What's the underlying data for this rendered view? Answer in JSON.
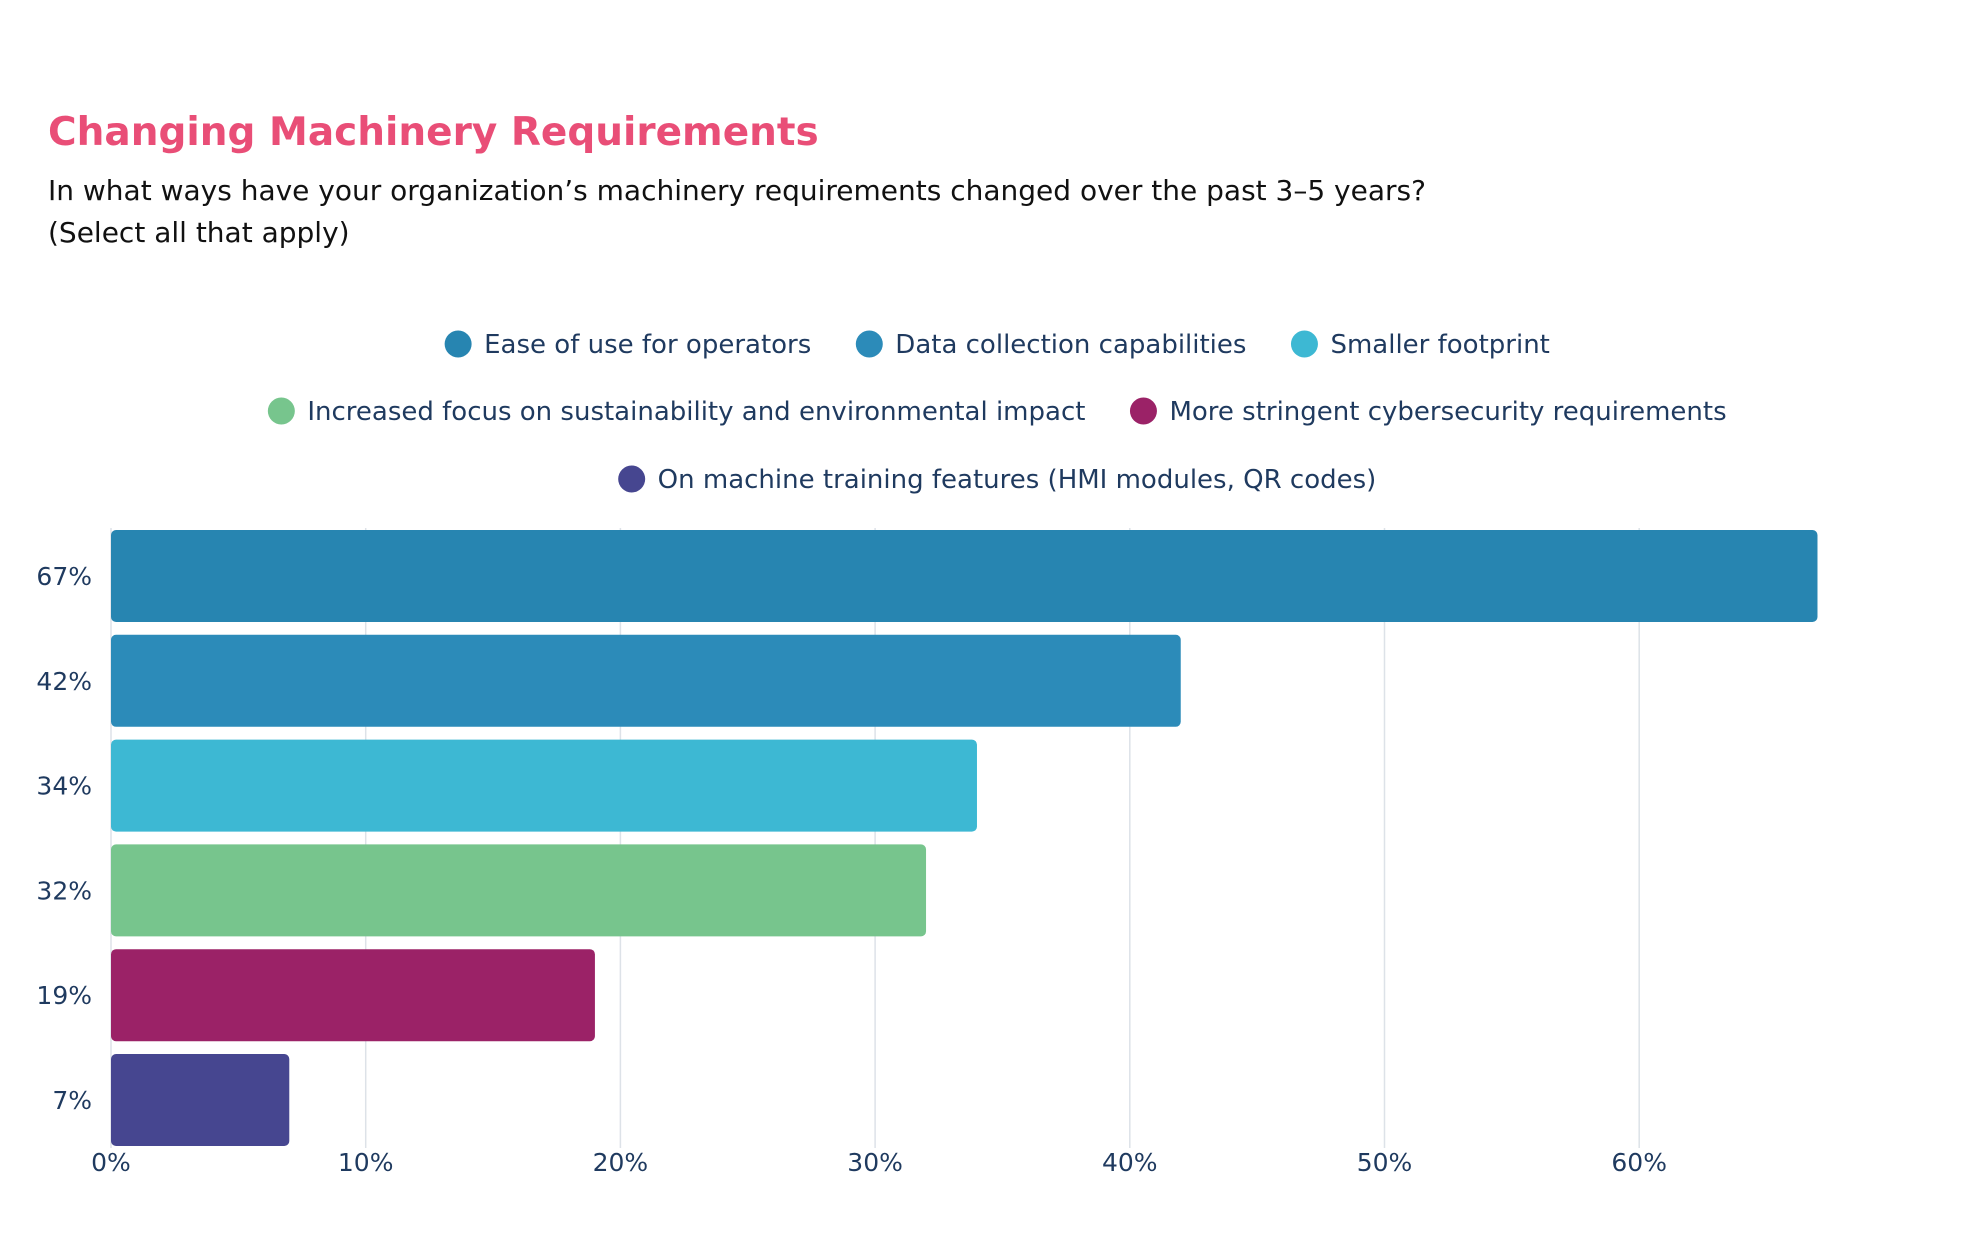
{
  "title": "Changing Machinery Requirements",
  "subtitle_line1": "In what ways have your organization’s machinery requirements changed over the past 3–5 years?",
  "subtitle_line2": "(Select all that apply)",
  "chart_data": {
    "type": "bar",
    "orientation": "horizontal",
    "categories": [
      "Ease of use for operators",
      "Data collection capabilities",
      "Smaller footprint",
      "Increased focus on sustainability and environmental impact",
      "More stringent cybersecurity requirements",
      "On machine training features (HMI modules, QR codes)"
    ],
    "values": [
      67,
      42,
      34,
      32,
      19,
      7
    ],
    "value_labels": [
      "67%",
      "42%",
      "34%",
      "32%",
      "19%",
      "7%"
    ],
    "colors": [
      "#2785b1",
      "#2c8bb9",
      "#3db8d3",
      "#77c58d",
      "#9b2267",
      "#464690"
    ],
    "xlim": [
      0,
      70
    ],
    "x_ticks": [
      0,
      10,
      20,
      30,
      40,
      50,
      60
    ],
    "x_tick_labels": [
      "0%",
      "10%",
      "20%",
      "30%",
      "40%",
      "50%",
      "60%"
    ],
    "grid": true,
    "legend_position": "top-center",
    "legend_rows": [
      [
        0,
        1,
        2
      ],
      [
        3,
        4
      ],
      [
        5
      ]
    ],
    "text_color": "#1f3a5f",
    "grid_color": "#dde2e8"
  }
}
